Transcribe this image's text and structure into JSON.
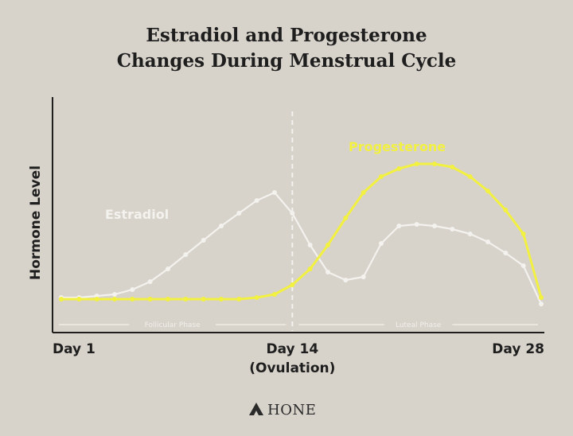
{
  "chart_data": {
    "type": "line",
    "title": [
      "Estradiol and Progesterone",
      "Changes During Menstrual Cycle"
    ],
    "ylabel": "Hormone Level",
    "xlim": [
      0,
      28
    ],
    "ylim": [
      0,
      100
    ],
    "x_ticks": [
      {
        "x": 1,
        "label": [
          "Day 1"
        ]
      },
      {
        "x": 14,
        "label": [
          "Day 14",
          "(Ovulation)"
        ]
      },
      {
        "x": 28,
        "label": [
          "Day 28"
        ]
      }
    ],
    "ovulation_marker_x": 14,
    "phases": [
      {
        "label": "Follicular Phase",
        "from": 1,
        "to": 14
      },
      {
        "label": "Luteal Phase",
        "to": 28
      }
    ],
    "series": [
      {
        "name": "Estradiol",
        "color": "#f4f2ee",
        "x": [
          1,
          2,
          3,
          4,
          5,
          6,
          7,
          8,
          9,
          10,
          11,
          12,
          13,
          14,
          15,
          16,
          17,
          18,
          19,
          20,
          21,
          22,
          23,
          24,
          25,
          26,
          27,
          28
        ],
        "values": [
          12,
          12,
          13,
          14,
          17,
          22,
          30,
          39,
          48,
          57,
          65,
          73,
          78,
          65,
          45,
          28,
          23,
          25,
          46,
          57,
          58,
          57,
          55,
          52,
          47,
          40,
          32,
          8
        ]
      },
      {
        "name": "Progesterone",
        "color": "#f2f040",
        "x": [
          1,
          2,
          3,
          4,
          5,
          6,
          7,
          8,
          9,
          10,
          11,
          12,
          13,
          14,
          15,
          16,
          17,
          18,
          19,
          20,
          21,
          22,
          23,
          24,
          25,
          26,
          27,
          28
        ],
        "values": [
          11,
          11,
          11,
          11,
          11,
          11,
          11,
          11,
          11,
          11,
          11,
          12,
          14,
          20,
          30,
          45,
          62,
          78,
          88,
          93,
          96,
          96,
          94,
          88,
          79,
          67,
          52,
          12
        ]
      }
    ],
    "grid": false,
    "legend": "inline-labels"
  },
  "branding": {
    "logo_icon": "mountain-icon",
    "logo_text": "HONE"
  }
}
